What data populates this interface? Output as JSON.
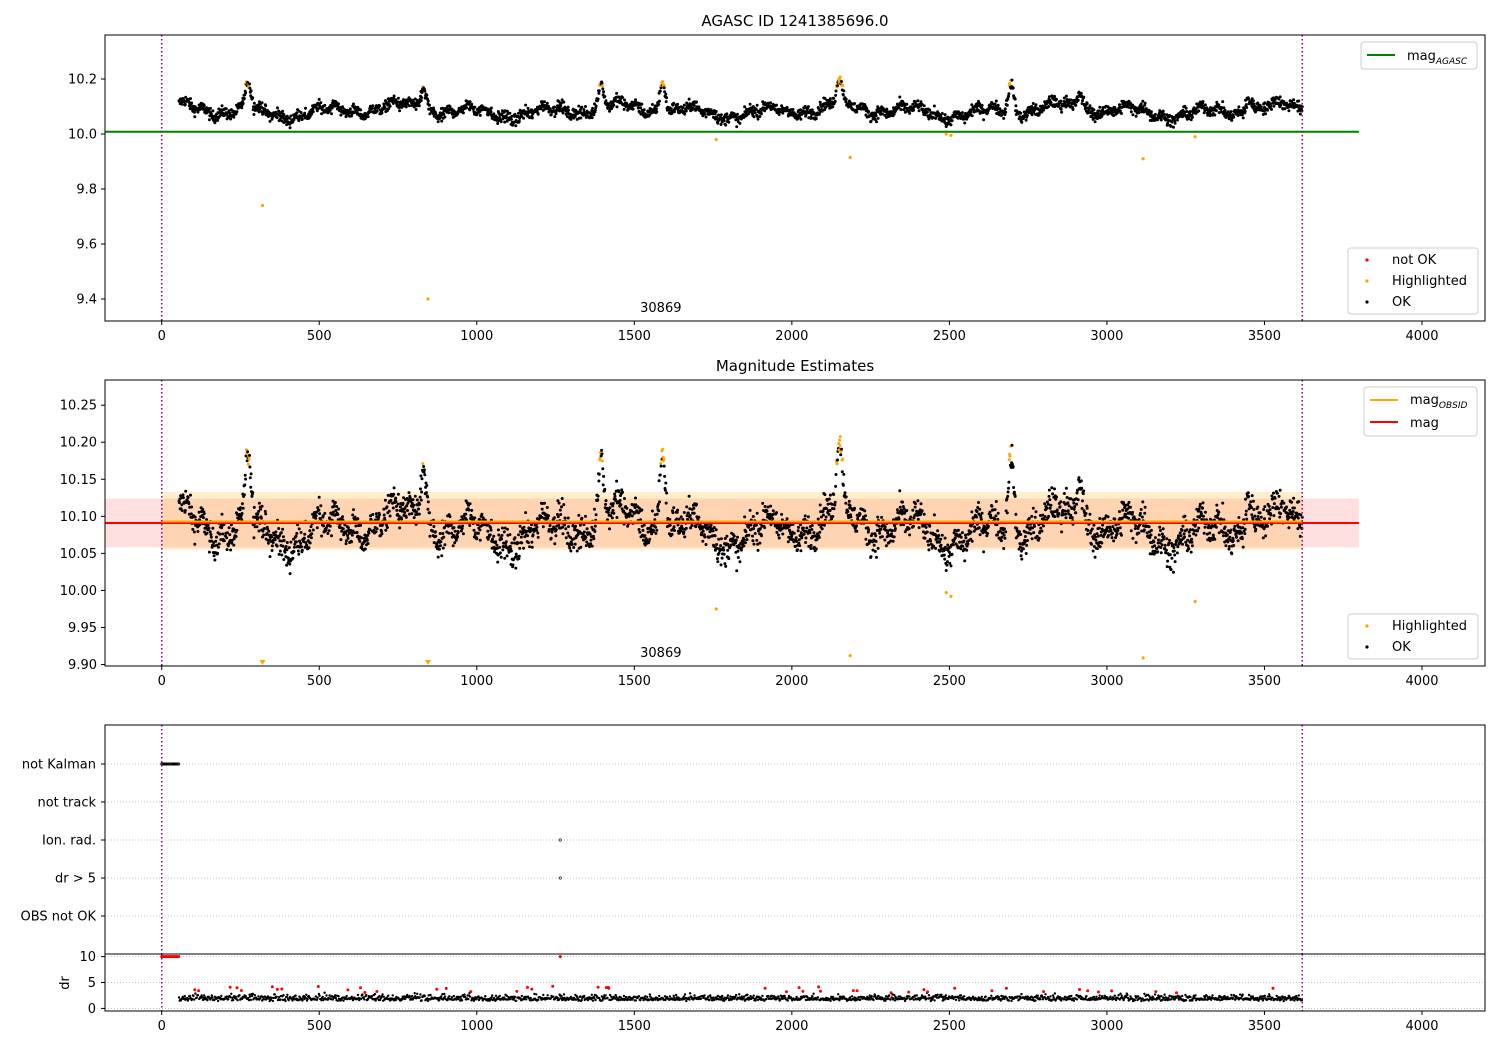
{
  "chart_data": [
    {
      "type": "scatter",
      "title": "AGASC ID 1241385696.0",
      "xlim": [
        -180,
        4200
      ],
      "ylim": [
        9.32,
        10.36
      ],
      "x_ticks": [
        "0",
        "500",
        "1000",
        "1500",
        "2000",
        "2500",
        "3000",
        "3500",
        "4000"
      ],
      "y_ticks": [
        "9.4",
        "9.6",
        "9.8",
        "10.0",
        "10.2"
      ],
      "vlines": [
        0,
        3620
      ],
      "obsid_label": {
        "x": 1800,
        "text": "30869"
      },
      "mag_agasc": {
        "value": 10.008,
        "x_range": [
          -180,
          3800
        ],
        "color": "#008000"
      },
      "series": [
        {
          "name": "not OK",
          "color": "#ff0000"
        },
        {
          "name": "Highlighted",
          "color": "#ffa500"
        },
        {
          "name": "OK",
          "color": "#000000"
        }
      ],
      "legend_lines": [
        {
          "name": "mag",
          "sub": "AGASC",
          "color": "#008000"
        }
      ],
      "legend_scatter": [
        "not OK",
        "Highlighted",
        "OK"
      ],
      "highlight_outliers": [
        {
          "x": 320,
          "y": 9.74
        },
        {
          "x": 845,
          "y": 9.4
        },
        {
          "x": 1760,
          "y": 9.98
        },
        {
          "x": 2185,
          "y": 9.915
        },
        {
          "x": 2490,
          "y": 10.0
        },
        {
          "x": 2505,
          "y": 9.995
        },
        {
          "x": 3115,
          "y": 9.91
        },
        {
          "x": 3280,
          "y": 9.99
        }
      ]
    },
    {
      "type": "scatter",
      "title": "Magnitude Estimates",
      "xlim": [
        -180,
        4200
      ],
      "ylim": [
        9.898,
        10.284
      ],
      "x_ticks": [
        "0",
        "500",
        "1000",
        "1500",
        "2000",
        "2500",
        "3000",
        "3500",
        "4000"
      ],
      "y_ticks": [
        "9.90",
        "9.95",
        "10.00",
        "10.05",
        "10.10",
        "10.15",
        "10.20",
        "10.25"
      ],
      "vlines": [
        0,
        3620
      ],
      "obsid_label": {
        "x": 1800,
        "text": "30869"
      },
      "mag": {
        "value": 10.091,
        "band": [
          10.058,
          10.124
        ],
        "x_range": [
          -180,
          3800
        ],
        "color": "#ff0000"
      },
      "mag_obsid": {
        "value": 10.093,
        "band": [
          10.055,
          10.133
        ],
        "x_range": [
          0,
          3620
        ],
        "color": "#ffa500"
      },
      "legend_lines": [
        {
          "name": "mag",
          "sub": "OBSID",
          "color": "#ffa500"
        },
        {
          "name": "mag",
          "sub": "",
          "color": "#ff0000"
        }
      ],
      "legend_scatter": [
        "Highlighted",
        "OK"
      ],
      "highlight_outliers": [
        {
          "x": 1760,
          "y": 9.975
        },
        {
          "x": 2185,
          "y": 9.912
        },
        {
          "x": 2490,
          "y": 9.997
        },
        {
          "x": 2505,
          "y": 9.992
        },
        {
          "x": 3115,
          "y": 9.909
        },
        {
          "x": 3280,
          "y": 9.985
        }
      ],
      "below_range_markers": [
        {
          "x": 320
        },
        {
          "x": 845
        }
      ]
    },
    {
      "type": "scatter",
      "title": "",
      "xlim": [
        -180,
        4200
      ],
      "flag_rows": [
        "not Kalman",
        "not track",
        "Ion. rad.",
        "dr > 5",
        "OBS not OK"
      ],
      "flag_points": [
        {
          "row": "not Kalman",
          "x_from": 0,
          "x_to": 55
        },
        {
          "row": "Ion. rad.",
          "x_from": 1265,
          "x_to": 1265
        },
        {
          "row": "dr > 5",
          "x_from": 1265,
          "x_to": 1265
        }
      ],
      "dr_ylabel": "dr",
      "dr_ylim": [
        -0.5,
        10.5
      ],
      "dr_ticks": [
        "0",
        "5",
        "10"
      ],
      "x_ticks": [
        "0",
        "500",
        "1000",
        "1500",
        "2000",
        "2500",
        "3000",
        "3500",
        "4000"
      ],
      "vlines": [
        0,
        3620
      ],
      "dr_high_points": [
        {
          "x_from": 0,
          "x_to": 55,
          "y": 10
        },
        {
          "x_from": 1265,
          "x_to": 1265,
          "y": 10
        }
      ]
    }
  ]
}
